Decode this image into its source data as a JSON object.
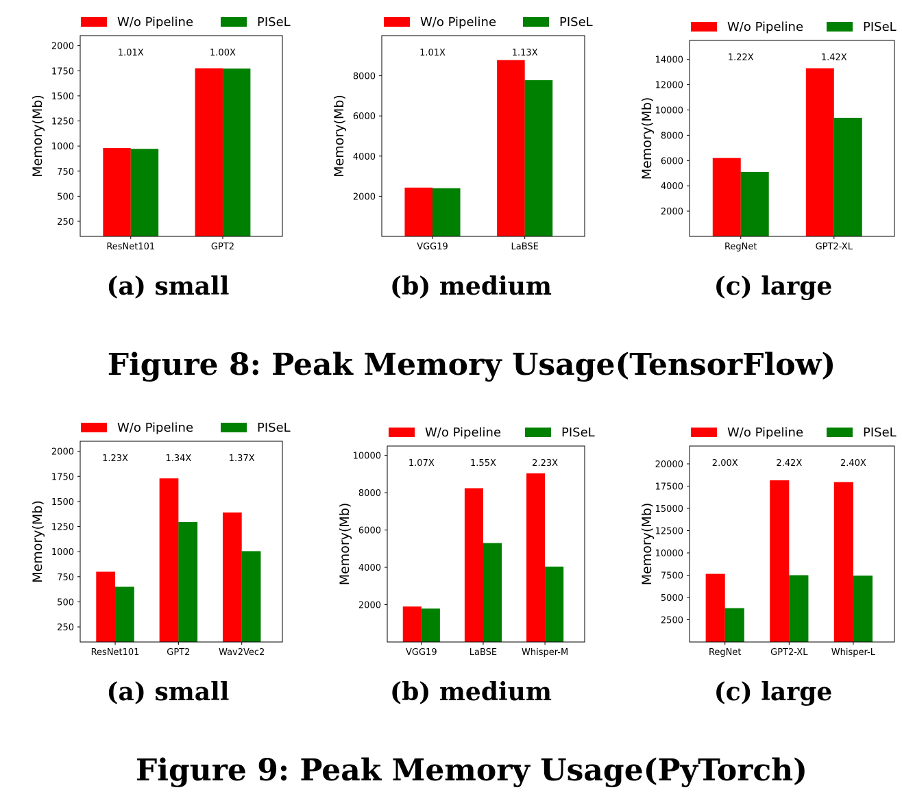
{
  "figures": [
    {
      "caption": "Figure 8: Peak Memory Usage(TensorFlow)",
      "subcaptions": [
        "(a) small",
        "(b) medium",
        "(c) large"
      ]
    },
    {
      "caption": "Figure 9: Peak Memory Usage(PyTorch)",
      "subcaptions": [
        "(a) small",
        "(b) medium",
        "(c) large"
      ]
    }
  ],
  "colors": {
    "baseline": "#ff0000",
    "pisel": "#008000"
  },
  "chart_data": [
    {
      "type": "bar",
      "figure": 0,
      "title": "",
      "xlabel": "",
      "ylabel": "Memory(Mb)",
      "legend": [
        "W/o Pipeline",
        "PISeL"
      ],
      "categories": [
        "ResNet101",
        "GPT2"
      ],
      "series": [
        {
          "name": "W/o Pipeline",
          "values": [
            980,
            1775
          ]
        },
        {
          "name": "PISeL",
          "values": [
            972,
            1772
          ]
        }
      ],
      "annotations": [
        "1.01X",
        "1.00X"
      ],
      "ylim": [
        100,
        2100
      ],
      "yticks": [
        250,
        500,
        750,
        1000,
        1250,
        1500,
        1750,
        2000
      ]
    },
    {
      "type": "bar",
      "figure": 0,
      "title": "",
      "xlabel": "",
      "ylabel": "Memory(Mb)",
      "legend": [
        "W/o Pipeline",
        "PISeL"
      ],
      "categories": [
        "VGG19",
        "LaBSE"
      ],
      "series": [
        {
          "name": "W/o Pipeline",
          "values": [
            2430,
            8780
          ]
        },
        {
          "name": "PISeL",
          "values": [
            2400,
            7780
          ]
        }
      ],
      "annotations": [
        "1.01X",
        "1.13X"
      ],
      "ylim": [
        0,
        10000
      ],
      "yticks": [
        2000,
        4000,
        6000,
        8000
      ]
    },
    {
      "type": "bar",
      "figure": 0,
      "title": "",
      "xlabel": "",
      "ylabel": "Memory(Mb)",
      "legend": [
        "W/o Pipeline",
        "PISeL"
      ],
      "categories": [
        "RegNet",
        "GPT2-XL"
      ],
      "series": [
        {
          "name": "W/o Pipeline",
          "values": [
            6200,
            13300
          ]
        },
        {
          "name": "PISeL",
          "values": [
            5100,
            9380
          ]
        }
      ],
      "annotations": [
        "1.22X",
        "1.42X"
      ],
      "ylim": [
        0,
        15500
      ],
      "yticks": [
        2000,
        4000,
        6000,
        8000,
        10000,
        12000,
        14000
      ]
    },
    {
      "type": "bar",
      "figure": 1,
      "title": "",
      "xlabel": "",
      "ylabel": "Memory(Mb)",
      "legend": [
        "W/o Pipeline",
        "PISeL"
      ],
      "categories": [
        "ResNet101",
        "GPT2",
        "Wav2Vec2"
      ],
      "series": [
        {
          "name": "W/o Pipeline",
          "values": [
            800,
            1730,
            1390
          ]
        },
        {
          "name": "PISeL",
          "values": [
            650,
            1295,
            1005
          ]
        }
      ],
      "annotations": [
        "1.23X",
        "1.34X",
        "1.37X"
      ],
      "ylim": [
        100,
        2100
      ],
      "yticks": [
        250,
        500,
        750,
        1000,
        1250,
        1500,
        1750,
        2000
      ]
    },
    {
      "type": "bar",
      "figure": 1,
      "title": "",
      "xlabel": "",
      "ylabel": "Memory(Mb)",
      "legend": [
        "W/o Pipeline",
        "PISeL"
      ],
      "categories": [
        "VGG19",
        "LaBSE",
        "Whisper-M"
      ],
      "series": [
        {
          "name": "W/o Pipeline",
          "values": [
            1900,
            8240,
            9040
          ]
        },
        {
          "name": "PISeL",
          "values": [
            1790,
            5300,
            4040
          ]
        }
      ],
      "annotations": [
        "1.07X",
        "1.55X",
        "2.23X"
      ],
      "ylim": [
        0,
        10500
      ],
      "yticks": [
        2000,
        4000,
        6000,
        8000,
        10000
      ]
    },
    {
      "type": "bar",
      "figure": 1,
      "title": "",
      "xlabel": "",
      "ylabel": "Memory(Mb)",
      "legend": [
        "W/o Pipeline",
        "PISeL"
      ],
      "categories": [
        "RegNet",
        "GPT2-XL",
        "Whisper-L"
      ],
      "series": [
        {
          "name": "W/o Pipeline",
          "values": [
            7650,
            18150,
            17950
          ]
        },
        {
          "name": "PISeL",
          "values": [
            3800,
            7500,
            7450
          ]
        }
      ],
      "annotations": [
        "2.00X",
        "2.42X",
        "2.40X"
      ],
      "ylim": [
        0,
        22000
      ],
      "yticks": [
        2500,
        5000,
        7500,
        10000,
        12500,
        15000,
        17500,
        20000
      ]
    }
  ]
}
